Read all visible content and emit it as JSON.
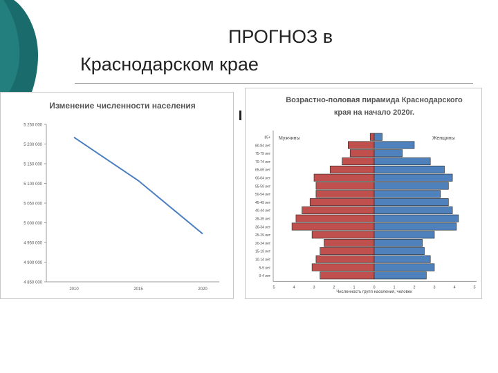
{
  "slide": {
    "title_line1": "ПРОГНОЗ в",
    "title_line2": "Краснодарском крае"
  },
  "colors": {
    "teal": "#1a6b6b",
    "line": "#4a7ec0",
    "male": "#c0504d",
    "female": "#4f81bd"
  },
  "chart_data": [
    {
      "type": "line",
      "title": "Изменение численности населения",
      "categories": [
        "2010",
        "2015",
        "2020"
      ],
      "x": [
        2010,
        2015,
        2020
      ],
      "series": [
        {
          "values": [
            5217000,
            5107000,
            4972000
          ]
        }
      ],
      "ylim": [
        4850000,
        5250000
      ],
      "yticks": [
        "4 850 000",
        "4 900 000",
        "4 950 000",
        "5 000 000",
        "5 050 000",
        "5 100 000",
        "5 150 000",
        "5 200 000",
        "5 250 000"
      ],
      "grid": false
    },
    {
      "type": "bar",
      "title": "Возрастно-половая пирамида Краснодарского края на начало 2020г.",
      "xlabel": "Численность групп населения, человек",
      "categories": [
        "85+",
        "80-84 лет",
        "75-79 лет",
        "70-74 лет",
        "65-69 лет",
        "60-64 лет",
        "55-59 лет",
        "50-54 лет",
        "45-49 лет",
        "40-44 лет",
        "35-39 лет",
        "30-34 лет",
        "25-29 лет",
        "20-24 лет",
        "15-19 лет",
        "10-14 лет",
        "5-9 лет",
        "0-4 лет"
      ],
      "series": [
        {
          "name": "Мужчины",
          "values": [
            0.2,
            1.3,
            1.2,
            1.6,
            2.2,
            3.0,
            2.9,
            2.9,
            3.2,
            3.6,
            3.9,
            4.1,
            3.1,
            2.5,
            2.7,
            2.9,
            3.1,
            2.7
          ]
        },
        {
          "name": "Женщины",
          "values": [
            0.4,
            2.0,
            1.4,
            2.8,
            3.5,
            3.9,
            3.7,
            3.3,
            3.7,
            3.9,
            4.2,
            4.1,
            3.0,
            2.4,
            2.5,
            2.8,
            3.0,
            2.6
          ]
        }
      ],
      "xlim": [
        -5,
        5
      ],
      "xticks": [
        "5",
        "4",
        "3",
        "2",
        "1",
        "0",
        "1",
        "2",
        "3",
        "4",
        "5"
      ],
      "legend": "top"
    }
  ]
}
